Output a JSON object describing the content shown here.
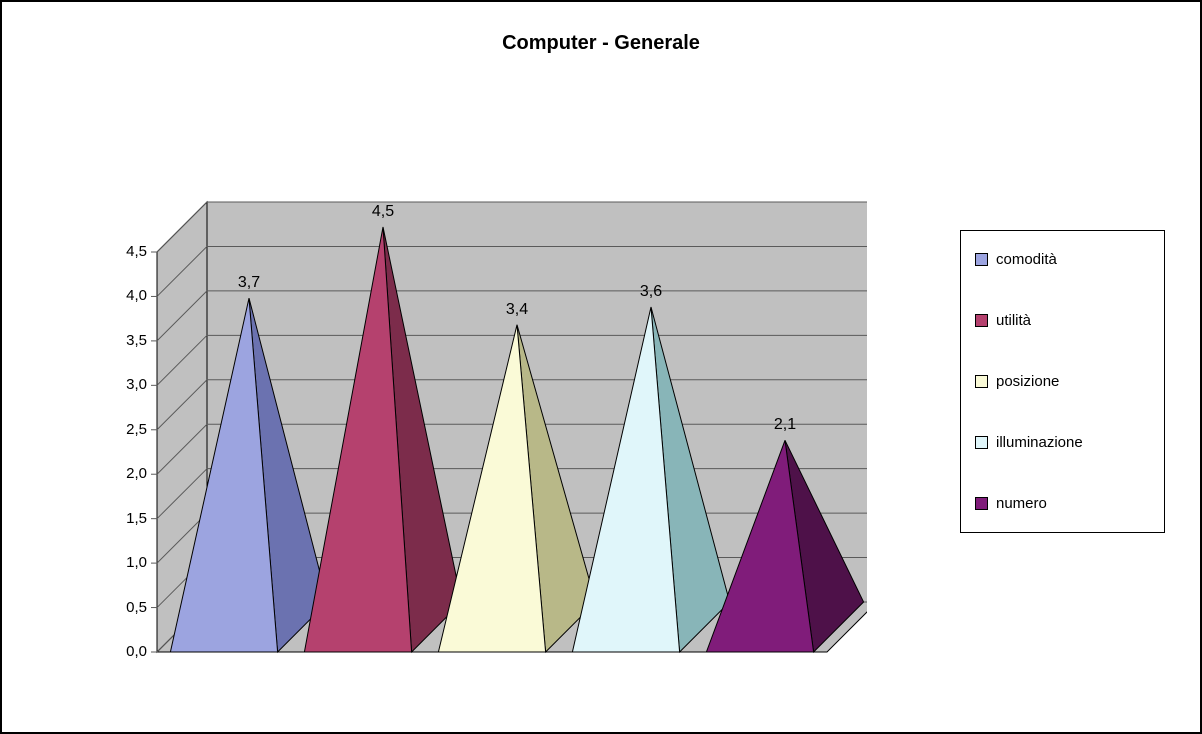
{
  "chart": {
    "title": "Computer - Generale",
    "title_fontsize": 20,
    "title_fontweight": "bold",
    "type": "3d-pyramid-bar",
    "categories": [
      "comodità",
      "utilità",
      "posizione",
      "illuminazione",
      "numero"
    ],
    "values": [
      3.7,
      4.5,
      3.4,
      3.6,
      2.1
    ],
    "value_labels": [
      "3,7",
      "4,5",
      "3,4",
      "3,6",
      "2,1"
    ],
    "colors_front": [
      "#9ca4e0",
      "#b5416e",
      "#fafad7",
      "#e0f6fa",
      "#801c7a"
    ],
    "colors_side": [
      "#6b72b0",
      "#7c2c4b",
      "#b8b888",
      "#88b5b8",
      "#4e1149"
    ],
    "legend_colors": [
      "#9ca4e0",
      "#b5416e",
      "#fafad7",
      "#e0f6fa",
      "#801c7a"
    ],
    "ylim": [
      0,
      4.5
    ],
    "ytick_step": 0.5,
    "ytick_labels": [
      "0,0",
      "0,5",
      "1,0",
      "1,5",
      "2,0",
      "2,5",
      "3,0",
      "3,5",
      "4,0",
      "4,5"
    ],
    "background_color": "#ffffff",
    "floor_color": "#c0c0c0",
    "wall_color": "#c0c0c0",
    "gridline_color": "#5a5a5a",
    "border_color": "#000000",
    "label_fontsize": 15,
    "data_label_fontsize": 16
  }
}
